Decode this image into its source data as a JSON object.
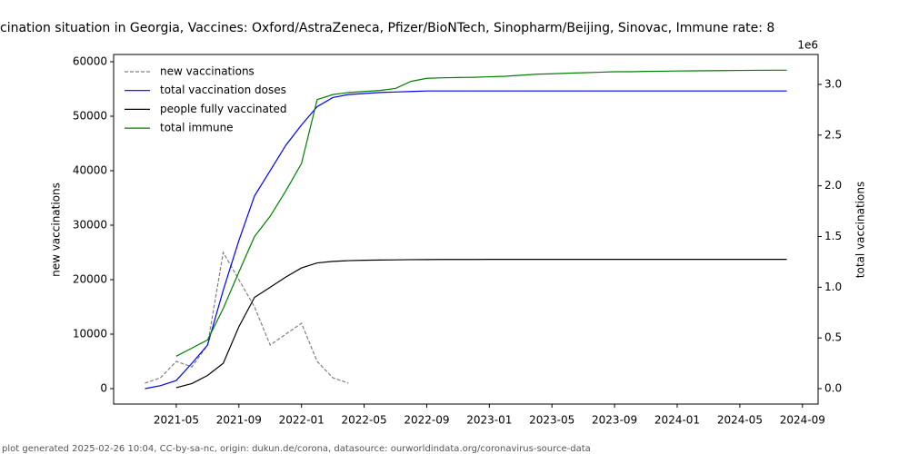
{
  "chart_data": {
    "type": "line",
    "title": "cination situation in Georgia, Vaccines: Oxford/AstraZeneca, Pfizer/BioNTech, Sinopharm/Beijing, Sinovac, Immune rate: 8",
    "footer": "plot generated 2025-02-26 10:04, CC-by-sa-nc, origin: dukun.de/corona, datasource: ourworldindata.org/coronavirus-source-data",
    "ylabel": "new vaccinations",
    "y2label": "total vaccinations",
    "y2_offset_label": "1e6",
    "legend": "upper left",
    "x": [
      "2021-03",
      "2021-04",
      "2021-05",
      "2021-06",
      "2021-07",
      "2021-08",
      "2021-09",
      "2021-10",
      "2021-11",
      "2021-12",
      "2022-01",
      "2022-02",
      "2022-03",
      "2022-04",
      "2022-05",
      "2022-06",
      "2022-07",
      "2022-08",
      "2022-09",
      "2022-10",
      "2022-11",
      "2022-12",
      "2023-01",
      "2023-02",
      "2023-03",
      "2023-04",
      "2023-05",
      "2023-06",
      "2023-07",
      "2023-08",
      "2023-09",
      "2023-10",
      "2023-11",
      "2023-12",
      "2024-01",
      "2024-02",
      "2024-03",
      "2024-04",
      "2024-05",
      "2024-06",
      "2024-07",
      "2024-08"
    ],
    "xlim": [
      "2021-01",
      "2024-10"
    ],
    "xticks": [
      "2021-05",
      "2021-09",
      "2022-01",
      "2022-05",
      "2022-09",
      "2023-01",
      "2023-05",
      "2023-09",
      "2024-01",
      "2024-05",
      "2024-09"
    ],
    "ylim": [
      -2833,
      61333
    ],
    "yticks": [
      0,
      10000,
      20000,
      30000,
      40000,
      50000,
      60000
    ],
    "y2lim": [
      -152000,
      3295000
    ],
    "y2ticks": [
      {
        "value": 0,
        "label": "0.0"
      },
      {
        "value": 500000,
        "label": "0.5"
      },
      {
        "value": 1000000,
        "label": "1.0"
      },
      {
        "value": 1500000,
        "label": "1.5"
      },
      {
        "value": 2000000,
        "label": "2.0"
      },
      {
        "value": 2500000,
        "label": "2.5"
      },
      {
        "value": 3000000,
        "label": "3.0"
      }
    ],
    "series": [
      {
        "name": "new vaccinations",
        "color": "#808080",
        "dashed": true,
        "values": [
          1000,
          2000,
          5000,
          4000,
          8000,
          25000,
          20000,
          15000,
          8000,
          10000,
          12000,
          5000,
          2000,
          1000,
          null,
          null,
          null,
          null,
          null,
          null,
          null,
          null,
          null,
          null,
          null,
          null,
          null,
          null,
          null,
          null,
          null,
          null,
          null,
          null,
          null,
          null,
          null,
          null,
          null,
          null,
          null,
          null
        ]
      },
      {
        "name": "total vaccination doses",
        "color": "#0000ff",
        "axis": "y2",
        "values": [
          0,
          30000,
          80000,
          250000,
          430000,
          970000,
          1460000,
          1900000,
          2150000,
          2400000,
          2600000,
          2780000,
          2870000,
          2900000,
          2910000,
          2920000,
          2925000,
          2930000,
          2935000,
          2935000,
          2935000,
          2935000,
          2935000,
          2935000,
          2935000,
          2935000,
          2935000,
          2935000,
          2935000,
          2935000,
          2935000,
          2935000,
          2935000,
          2935000,
          2935000,
          2935000,
          2935000,
          2935000,
          2935000,
          2935000,
          2935000,
          2935000
        ]
      },
      {
        "name": "people fully vaccinated",
        "color": "#000000",
        "axis": "y2",
        "values": [
          null,
          null,
          10000,
          50000,
          130000,
          250000,
          610000,
          900000,
          1000000,
          1100000,
          1190000,
          1240000,
          1255000,
          1262000,
          1266000,
          1268000,
          1270000,
          1272000,
          1273000,
          1274000,
          1274000,
          1274000,
          1275000,
          1275000,
          1275000,
          1275000,
          1275000,
          1275000,
          1275000,
          1275000,
          1275000,
          1275000,
          1275000,
          1275000,
          1275000,
          1275000,
          1275000,
          1275000,
          1275000,
          1275000,
          1275000,
          1275000
        ]
      },
      {
        "name": "total immune",
        "color": "#008000",
        "axis": "y2",
        "values": [
          null,
          null,
          320000,
          400000,
          480000,
          790000,
          1150000,
          1500000,
          1700000,
          1950000,
          2220000,
          2850000,
          2900000,
          2920000,
          2930000,
          2940000,
          2960000,
          3030000,
          3060000,
          3065000,
          3068000,
          3070000,
          3075000,
          3080000,
          3090000,
          3100000,
          3105000,
          3110000,
          3115000,
          3120000,
          3125000,
          3125000,
          3128000,
          3130000,
          3132000,
          3134000,
          3135000,
          3136000,
          3138000,
          3139000,
          3140000,
          3140000
        ]
      }
    ]
  }
}
